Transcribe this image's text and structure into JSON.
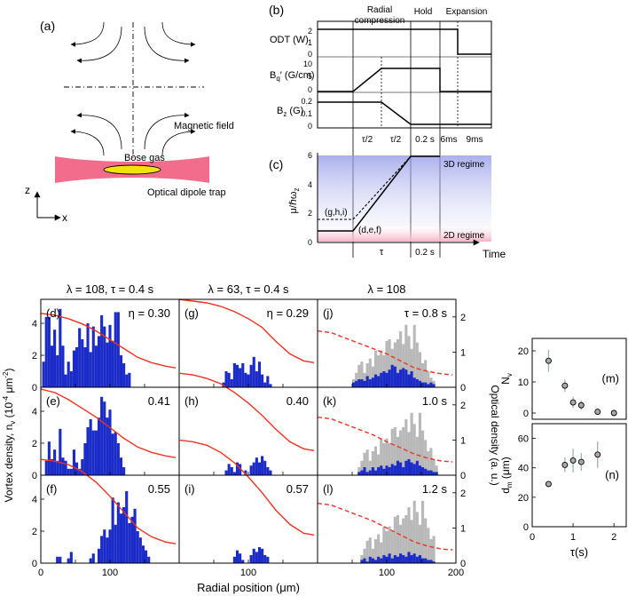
{
  "panel_a": {
    "label": "(a)",
    "magnetic_field_label": "Magnetic field",
    "bose_gas_label": "Bose gas",
    "trap_label": "Optical dipole trap",
    "z_axis": "z",
    "x_axis": "x",
    "colors": {
      "trap": "#f26d8c",
      "gas": "#f5e20a"
    }
  },
  "panel_b": {
    "label": "(b)",
    "stages": [
      "Radial\ncompression",
      "Hold",
      "Expansion"
    ],
    "odt": {
      "label": "ODT (W)",
      "ticks": [
        "2",
        "1",
        "0"
      ]
    },
    "bq": {
      "label": "B",
      "sub": "q",
      "rest": "′ (G/cm)",
      "ticks": [
        "10",
        "5",
        "0"
      ]
    },
    "bz": {
      "label": "B",
      "sub": "z",
      "rest": " (G)",
      "ticks": [
        "0.2",
        "0.1",
        "0"
      ]
    },
    "time_labels": [
      "τ/2",
      "τ/2",
      "0.2 s",
      "6ms",
      "9ms"
    ]
  },
  "panel_c": {
    "label": "(c)",
    "ylabel": "μ/ℏω",
    "ylabel_sub": "z",
    "yticks": [
      "6",
      "4",
      "2",
      "0"
    ],
    "regime_3d": "3D regime",
    "regime_2d": "2D regime",
    "curve_labels": [
      "(g,h,i)",
      "(d,e,f)"
    ],
    "time_labels": [
      "τ",
      "0.2 s"
    ],
    "xlabel": "Time"
  },
  "column_titles": [
    "λ = 108, τ = 0.4 s",
    "λ = 63, τ = 0.4 s",
    "λ = 108"
  ],
  "histograms": {
    "ylabel_left": "Vortex density, n",
    "ylabel_left_sub": "v",
    "ylabel_left_unit": " (10",
    "ylabel_left_exp": "-4",
    "ylabel_left_end": " μm",
    "ylabel_left_exp2": "-2",
    "ylabel_left_close": ")",
    "ylabel_right": "Optical density (a. u.)",
    "xlabel": "Radial position (μm)",
    "left_ticks": [
      "4",
      "2",
      "0"
    ],
    "right_ticks": [
      "2",
      "1",
      "0"
    ],
    "xticks": [
      "0",
      "100",
      "100",
      "100",
      "200"
    ],
    "colors": {
      "bar": "#1a2bc8",
      "gray": "#b8b8b8",
      "profile": "#ee3322"
    }
  },
  "chart_data": {
    "type": "bar",
    "x_unit": "μm",
    "bin_width_um": 4,
    "panels": [
      {
        "id": "d",
        "label": "(d)",
        "annotation": "η = 0.30",
        "x_start": 2,
        "values": [
          1.6,
          4.4,
          4.4,
          2.6,
          3.6,
          2.0,
          4.9,
          2.6,
          0.8,
          1.6,
          1.0,
          2.3,
          2.5,
          3.7,
          3.0,
          2.5,
          4.0,
          2.2,
          3.8,
          2.6,
          3.2,
          4.5,
          3.8,
          2.8,
          3.9,
          2.9,
          4.7,
          4.7,
          2.0,
          1.5,
          0.8,
          0.9
        ]
      },
      {
        "id": "e",
        "label": "(e)",
        "annotation": "0.41",
        "x_start": 6,
        "values": [
          0.9,
          2.1,
          1.0,
          1.6,
          0.9,
          2.9,
          1.1,
          0.9,
          0.4,
          0.4,
          1.6,
          0.8,
          0.4,
          1.0,
          2.0,
          3.0,
          3.5,
          2.8,
          2.8,
          3.6,
          4.9,
          4.6,
          3.6,
          4.1,
          2.6,
          2.7,
          2.0,
          1.1,
          0.5
        ]
      },
      {
        "id": "f",
        "label": "(f)",
        "annotation": "0.55",
        "x_start": 22,
        "values": [
          0.4,
          0.4,
          0,
          0,
          0.3,
          0.7,
          0,
          0,
          0,
          0,
          0,
          0,
          0.3,
          0.6,
          0,
          0.9,
          1.7,
          2.1,
          1.6,
          2.1,
          4.1,
          2.4,
          3.8,
          3.1,
          3.5,
          4.5,
          2.5,
          2.9,
          3.4,
          2.0,
          1.6,
          1.1,
          0.8,
          0.4
        ]
      },
      {
        "id": "g",
        "label": "(g)",
        "annotation": "η = 0.29",
        "x_start": 62,
        "values": [
          0.3,
          1.0,
          0.9,
          0.5,
          1.5,
          1.4,
          1.2,
          1.5,
          0.9,
          0.8,
          1.4,
          1.9,
          1.0,
          1.6,
          0.8,
          0.3,
          0.7,
          0.2
        ]
      },
      {
        "id": "h",
        "label": "(h)",
        "annotation": "0.40",
        "x_start": 66,
        "values": [
          0.3,
          0.7,
          0.5,
          0.2,
          0.8,
          0.7,
          0,
          0.3,
          0,
          0.6,
          0.8,
          1.1,
          0.8,
          1.2,
          0.9,
          0.5,
          0.3
        ]
      },
      {
        "id": "i",
        "label": "(i)",
        "annotation": "0.57",
        "x_start": 78,
        "values": [
          0.4,
          0.8,
          0.6,
          0.2,
          0,
          0,
          0.5,
          0.9,
          0.7,
          1.0,
          0.9,
          0.5,
          0.4
        ]
      },
      {
        "id": "j",
        "label": "(j)",
        "annotation": "τ = 0.8 s",
        "x_start": 50,
        "values": [
          0.3,
          0.4,
          0.5,
          0.5,
          0.4,
          0.7,
          0.5,
          0.6,
          0.8,
          0.7,
          0.9,
          1.0,
          0.9,
          1.1,
          1.4,
          1.3,
          0.9,
          1.1,
          1.2,
          1.1,
          0.8,
          1.0,
          0.6,
          0.5,
          0.4,
          0.3,
          0.3,
          0.2,
          0.3,
          0.2
        ],
        "gray": [
          0.5,
          0.9,
          1.4,
          1.6,
          0.9,
          1.5,
          1.8,
          1.3,
          2.3,
          2.0,
          2.3,
          2.0,
          2.9,
          3.0,
          2.4,
          2.8,
          3.0,
          3.5,
          2.7,
          3.9,
          3.2,
          2.4,
          3.9,
          2.8,
          2.2,
          1.5,
          1.7,
          1.0,
          0.6,
          0.4
        ]
      },
      {
        "id": "k",
        "label": "(k)",
        "annotation": "1.0 s",
        "x_start": 58,
        "values": [
          0.2,
          0.3,
          0.5,
          0.2,
          0.3,
          0.5,
          0.3,
          0.5,
          0.6,
          0.4,
          0.6,
          0.5,
          0.7,
          0.6,
          0.9,
          0.8,
          0.5,
          0.9,
          1.0,
          0.8,
          0.7,
          0.9,
          0.6,
          0.5,
          0.4,
          0.3,
          0.3,
          0.2,
          0.2
        ],
        "gray": [
          0.5,
          0.9,
          1.4,
          1.6,
          0.9,
          1.5,
          1.8,
          1.3,
          2.3,
          2.0,
          2.3,
          2.0,
          2.9,
          3.0,
          2.4,
          2.8,
          3.0,
          3.5,
          2.7,
          3.9,
          3.2,
          2.4,
          3.9,
          2.8,
          2.2,
          1.5,
          1.7,
          1.0,
          0.6
        ]
      },
      {
        "id": "l",
        "label": "(l)",
        "annotation": "1.2 s",
        "x_start": 62,
        "values": [
          0.2,
          0.3,
          0.1,
          0.4,
          0.3,
          0.2,
          0.4,
          0.3,
          0.5,
          0.4,
          0.6,
          0.3,
          0.5,
          0.4,
          0.6,
          0.5,
          0.4,
          0.7,
          0.5,
          0.6,
          0.4,
          0.5,
          0.3,
          0.3,
          0.2,
          0.2,
          0.1
        ],
        "gray": [
          0.5,
          0.9,
          1.4,
          1.6,
          0.9,
          1.5,
          1.8,
          1.3,
          2.3,
          2.0,
          2.3,
          2.0,
          2.9,
          3.0,
          2.4,
          2.8,
          3.0,
          3.5,
          2.7,
          3.9,
          3.2,
          2.4,
          3.9,
          2.8,
          2.2,
          1.5,
          1.7
        ]
      }
    ],
    "profile_x": [
      0,
      20,
      40,
      60,
      80,
      100,
      120,
      140,
      160,
      180,
      195
    ],
    "profile_solid": {
      "d": [
        2.1,
        2.05,
        1.95,
        1.8,
        1.6,
        1.35,
        1.1,
        0.85,
        0.7,
        0.6,
        0.55
      ],
      "e": [
        2.45,
        2.35,
        2.15,
        1.9,
        1.65,
        1.35,
        1.05,
        0.8,
        0.65,
        0.55,
        0.5
      ],
      "f": [
        2.95,
        2.9,
        2.8,
        2.6,
        2.3,
        1.9,
        1.45,
        1.0,
        0.75,
        0.6,
        0.55
      ],
      "g": [
        2.5,
        2.45,
        2.4,
        2.3,
        2.15,
        1.95,
        1.7,
        1.3,
        0.95,
        0.75,
        0.7
      ],
      "h": [
        2.9,
        2.85,
        2.75,
        2.6,
        2.35,
        2.05,
        1.7,
        1.3,
        0.95,
        0.75,
        0.7
      ],
      "i": [
        3.5,
        3.45,
        3.35,
        3.15,
        2.85,
        2.45,
        2.0,
        1.5,
        1.1,
        0.85,
        0.8
      ]
    },
    "profile_dashed": {
      "j": [
        1.6,
        1.55,
        1.4,
        1.25,
        1.1,
        0.95,
        0.75,
        0.55,
        0.45,
        0.38,
        0.35
      ],
      "k": [
        1.65,
        1.6,
        1.45,
        1.3,
        1.15,
        0.95,
        0.78,
        0.6,
        0.48,
        0.4,
        0.38
      ],
      "l": [
        1.7,
        1.65,
        1.5,
        1.35,
        1.2,
        1.0,
        0.8,
        0.6,
        0.48,
        0.4,
        0.38
      ]
    },
    "panel_m": {
      "label": "(m)",
      "ylabel": "N",
      "ylabel_sub": "v",
      "yticks": [
        "20",
        "10",
        "0"
      ],
      "ylim": [
        -2,
        24
      ],
      "x": [
        0.4,
        0.8,
        1.0,
        1.2,
        1.6,
        2.0
      ],
      "y": [
        16.8,
        8.8,
        3.4,
        2.5,
        0.4,
        0.0
      ],
      "err": [
        3.5,
        2.0,
        1.8,
        1.5,
        0.9,
        0.4
      ]
    },
    "panel_n": {
      "label": "(n)",
      "ylabel": "d",
      "ylabel_sub": "m",
      "ylabel_unit": " (μm)",
      "yticks": [
        "60",
        "40",
        "20",
        "0"
      ],
      "ylim": [
        0,
        70
      ],
      "x": [
        0.4,
        0.8,
        1.0,
        1.2,
        1.6
      ],
      "y": [
        29,
        42,
        45,
        44,
        49
      ],
      "err": [
        2,
        5,
        8,
        6,
        9
      ]
    },
    "mn_xlabel": "τ(s)",
    "mn_xticks": [
      "0",
      "1",
      "2"
    ],
    "mn_xlim": [
      0,
      2.3
    ]
  }
}
